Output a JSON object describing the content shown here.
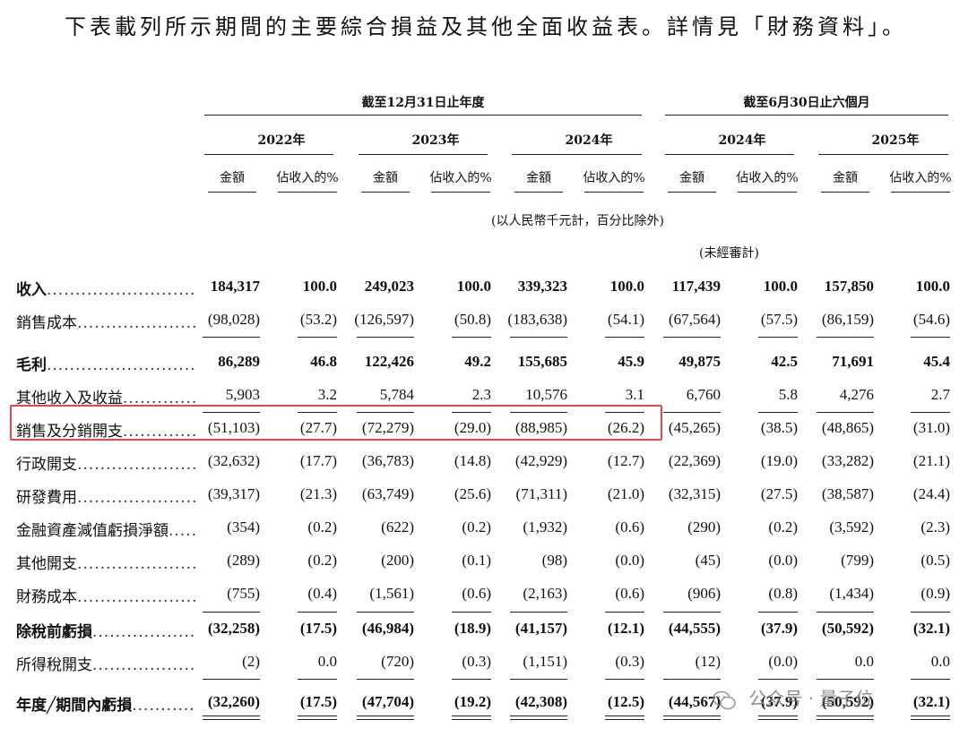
{
  "intro": "下表載列所示期間的主要綜合損益及其他全面收益表。詳情見「財務資料」。",
  "group_headers": {
    "annual": "截至12月31日止年度",
    "half": "截至6月30日止六個月"
  },
  "years": [
    "2022年",
    "2023年",
    "2024年",
    "2024年",
    "2025年"
  ],
  "sub_headers": {
    "amount": "金額",
    "pct": "佔收入的%"
  },
  "unit_note": "(以人民幣千元計，百分比除外)",
  "unaudited_note": "(未經審計)",
  "rows": [
    {
      "label": "收入",
      "bold": true,
      "values": [
        "184,317",
        "100.0",
        "249,023",
        "100.0",
        "339,323",
        "100.0",
        "117,439",
        "100.0",
        "157,850",
        "100.0"
      ]
    },
    {
      "label": "銷售成本",
      "bold": false,
      "values": [
        "(98,028)",
        "(53.2)",
        "(126,597)",
        "(50.8)",
        "(183,638)",
        "(54.1)",
        "(67,564)",
        "(57.5)",
        "(86,159)",
        "(54.6)"
      ]
    },
    {
      "label": "毛利",
      "bold": true,
      "values": [
        "86,289",
        "46.8",
        "122,426",
        "49.2",
        "155,685",
        "45.9",
        "49,875",
        "42.5",
        "71,691",
        "45.4"
      ]
    },
    {
      "label": "其他收入及收益",
      "bold": false,
      "values": [
        "5,903",
        "3.2",
        "5,784",
        "2.3",
        "10,576",
        "3.1",
        "6,760",
        "5.8",
        "4,276",
        "2.7"
      ]
    },
    {
      "label": "銷售及分銷開支",
      "bold": false,
      "values": [
        "(51,103)",
        "(27.7)",
        "(72,279)",
        "(29.0)",
        "(88,985)",
        "(26.2)",
        "(45,265)",
        "(38.5)",
        "(48,865)",
        "(31.0)"
      ]
    },
    {
      "label": "行政開支",
      "bold": false,
      "values": [
        "(32,632)",
        "(17.7)",
        "(36,783)",
        "(14.8)",
        "(42,929)",
        "(12.7)",
        "(22,369)",
        "(19.0)",
        "(33,282)",
        "(21.1)"
      ]
    },
    {
      "label": "研發費用",
      "bold": false,
      "values": [
        "(39,317)",
        "(21.3)",
        "(63,749)",
        "(25.6)",
        "(71,311)",
        "(21.0)",
        "(32,315)",
        "(27.5)",
        "(38,587)",
        "(24.4)"
      ]
    },
    {
      "label": "金融資產減值虧損淨額",
      "bold": false,
      "values": [
        "(354)",
        "(0.2)",
        "(622)",
        "(0.2)",
        "(1,932)",
        "(0.6)",
        "(290)",
        "(0.2)",
        "(3,592)",
        "(2.3)"
      ]
    },
    {
      "label": "其他開支",
      "bold": false,
      "values": [
        "(289)",
        "(0.2)",
        "(200)",
        "(0.1)",
        "(98)",
        "(0.0)",
        "(45)",
        "(0.0)",
        "(799)",
        "(0.5)"
      ]
    },
    {
      "label": "財務成本",
      "bold": false,
      "values": [
        "(755)",
        "(0.4)",
        "(1,561)",
        "(0.6)",
        "(2,163)",
        "(0.6)",
        "(906)",
        "(0.8)",
        "(1,434)",
        "(0.9)"
      ]
    },
    {
      "label": "除稅前虧損",
      "bold": true,
      "values": [
        "(32,258)",
        "(17.5)",
        "(46,984)",
        "(18.9)",
        "(41,157)",
        "(12.1)",
        "(44,555)",
        "(37.9)",
        "(50,592)",
        "(32.1)"
      ]
    },
    {
      "label": "所得稅開支",
      "bold": false,
      "values": [
        "(2)",
        "0.0",
        "(720)",
        "(0.3)",
        "(1,151)",
        "(0.3)",
        "(12)",
        "(0.0)",
        "0.0",
        "0.0"
      ]
    },
    {
      "label": "年度╱期間內虧損",
      "bold": true,
      "values": [
        "(32,260)",
        "(17.5)",
        "(47,704)",
        "(19.2)",
        "(42,308)",
        "(12.5)",
        "(44,567)",
        "(37.9)",
        "(50,592)",
        "(32.1)"
      ]
    }
  ],
  "highlight_color": "#e8464d",
  "watermark": "公众号 · 量子位"
}
